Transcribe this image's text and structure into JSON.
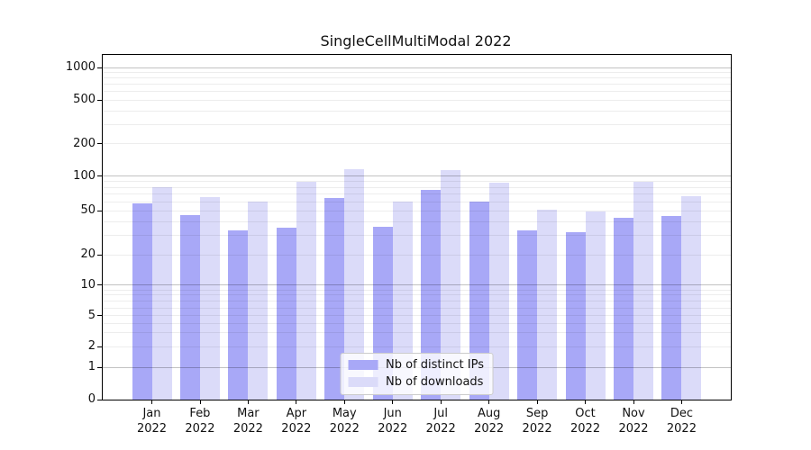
{
  "title": "SingleCellMultiModal 2022",
  "legend": {
    "position": "lower center",
    "items": [
      {
        "label": "Nb of distinct IPs",
        "series": "ips"
      },
      {
        "label": "Nb of downloads",
        "series": "downloads"
      }
    ]
  },
  "colors": {
    "ips_bar": "#a8a8f7",
    "downloads_bar": "#dbdbf9",
    "grid_major": "rgba(0,0,0,0.24)",
    "grid_minor": "rgba(0,0,0,0.07)",
    "axis": "#000000",
    "background": "#ffffff"
  },
  "chart_data": {
    "type": "bar",
    "title": "SingleCellMultiModal 2022",
    "categories": [
      "Jan",
      "Feb",
      "Mar",
      "Apr",
      "May",
      "Jun",
      "Jul",
      "Aug",
      "Sep",
      "Oct",
      "Nov",
      "Dec"
    ],
    "category_year": "2022",
    "series": [
      {
        "name": "Nb of distinct IPs",
        "color": "#a8a8f7",
        "values": [
          58,
          46,
          33,
          35,
          65,
          36,
          76,
          60,
          33,
          32,
          43,
          45
        ]
      },
      {
        "name": "Nb of downloads",
        "color": "#dbdbf9",
        "values": [
          80,
          66,
          60,
          90,
          116,
          60,
          114,
          88,
          51,
          49,
          89,
          67
        ]
      }
    ],
    "xlabel": "",
    "ylabel": "",
    "yscale": "symlog",
    "yticks": [
      0,
      1,
      2,
      5,
      10,
      20,
      50,
      100,
      200,
      500,
      1000
    ],
    "ylim": [
      0,
      1300
    ],
    "grid": "both",
    "major_grid_at": [
      1,
      10,
      100,
      1000
    ],
    "legend_position": "lower center"
  }
}
